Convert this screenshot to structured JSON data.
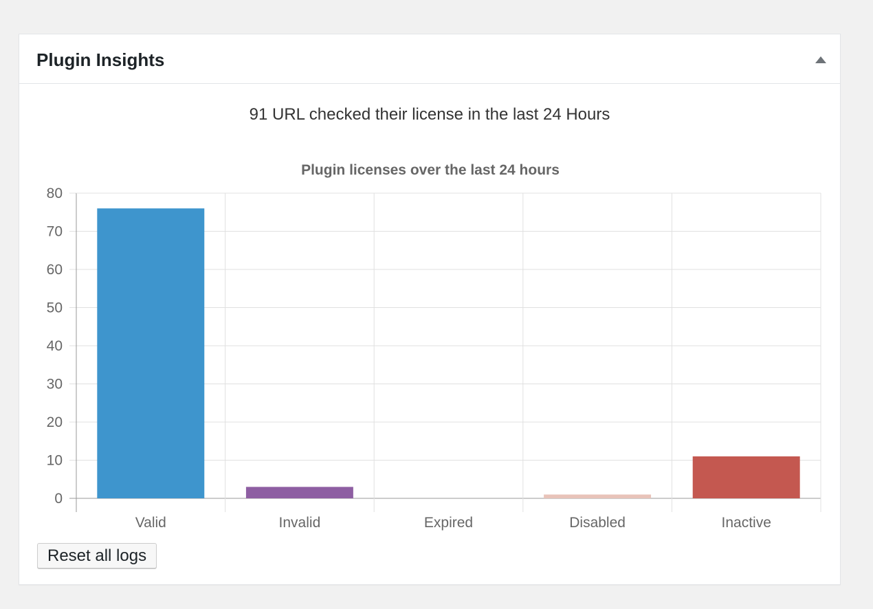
{
  "widget": {
    "title": "Plugin Insights",
    "toggle_icon": "triangle-up-icon",
    "summary": "91 URL checked their license in the last 24 Hours",
    "reset_label": "Reset all logs"
  },
  "chart_data": {
    "type": "bar",
    "title": "Plugin licenses over the last 24 hours",
    "categories": [
      "Valid",
      "Invalid",
      "Expired",
      "Disabled",
      "Inactive"
    ],
    "values": [
      76,
      3,
      0,
      1,
      11
    ],
    "colors": [
      "#3e95cd",
      "#8e5ea2",
      "#3cba9f",
      "#e8c3b9",
      "#c45850"
    ],
    "ylim": [
      0,
      80
    ],
    "yticks": [
      0,
      10,
      20,
      30,
      40,
      50,
      60,
      70,
      80
    ],
    "xlabel": "",
    "ylabel": "",
    "grid": true,
    "legend": "none"
  }
}
